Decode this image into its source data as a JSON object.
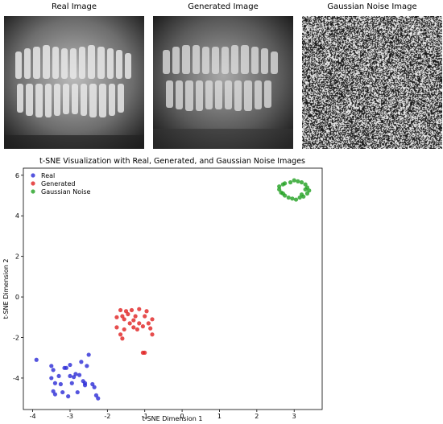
{
  "panels": [
    {
      "title": "Real Image",
      "icon": "panoramic-xray-icon"
    },
    {
      "title": "Generated Image",
      "icon": "panoramic-xray-icon"
    },
    {
      "title": "Gaussian Noise Image",
      "icon": "noise-texture-icon"
    }
  ],
  "chart_data": {
    "type": "scatter",
    "title": "t-SNE Visualization with Real, Generated, and Gaussian Noise Images",
    "xlabel": "t-SNE Dimension 1",
    "ylabel": "t-SNE Dimension 2",
    "xlim": [
      -4.25,
      3.75
    ],
    "ylim": [
      -5.55,
      6.35
    ],
    "xticks": [
      -4,
      -3,
      -2,
      -1,
      0,
      1,
      2,
      3
    ],
    "yticks": [
      -4,
      -2,
      0,
      2,
      4,
      6
    ],
    "legend_position": "top-left",
    "grid": false,
    "series": [
      {
        "name": "Real",
        "color": "#2a2ad6",
        "points": [
          [
            -3.9,
            -3.1
          ],
          [
            -3.5,
            -3.4
          ],
          [
            -3.45,
            -3.6
          ],
          [
            -3.15,
            -3.5
          ],
          [
            -3.1,
            -3.5
          ],
          [
            -3.0,
            -3.35
          ],
          [
            -2.7,
            -3.2
          ],
          [
            -2.55,
            -3.4
          ],
          [
            -2.5,
            -2.85
          ],
          [
            -3.5,
            -4.0
          ],
          [
            -3.3,
            -3.9
          ],
          [
            -3.0,
            -3.9
          ],
          [
            -2.9,
            -3.95
          ],
          [
            -2.85,
            -3.8
          ],
          [
            -2.75,
            -3.85
          ],
          [
            -2.65,
            -4.15
          ],
          [
            -3.4,
            -4.25
          ],
          [
            -3.25,
            -4.3
          ],
          [
            -2.95,
            -4.25
          ],
          [
            -2.6,
            -4.25
          ],
          [
            -2.6,
            -4.35
          ],
          [
            -2.4,
            -4.3
          ],
          [
            -2.35,
            -4.45
          ],
          [
            -3.45,
            -4.65
          ],
          [
            -3.4,
            -4.8
          ],
          [
            -3.2,
            -4.7
          ],
          [
            -3.05,
            -4.9
          ],
          [
            -2.8,
            -4.7
          ],
          [
            -2.3,
            -4.85
          ],
          [
            -2.25,
            -5.0
          ]
        ]
      },
      {
        "name": "Generated",
        "color": "#e02020",
        "points": [
          [
            -1.65,
            -0.65
          ],
          [
            -1.5,
            -0.7
          ],
          [
            -1.35,
            -0.65
          ],
          [
            -1.15,
            -0.6
          ],
          [
            -0.95,
            -0.7
          ],
          [
            -1.6,
            -0.95
          ],
          [
            -1.45,
            -0.85
          ],
          [
            -1.55,
            -1.1
          ],
          [
            -1.25,
            -0.95
          ],
          [
            -1.0,
            -0.95
          ],
          [
            -1.3,
            -1.15
          ],
          [
            -0.8,
            -1.1
          ],
          [
            -1.75,
            -1.0
          ],
          [
            -1.4,
            -1.3
          ],
          [
            -1.15,
            -1.3
          ],
          [
            -1.05,
            -1.45
          ],
          [
            -0.9,
            -1.3
          ],
          [
            -1.75,
            -1.5
          ],
          [
            -1.55,
            -1.6
          ],
          [
            -1.3,
            -1.5
          ],
          [
            -1.2,
            -1.6
          ],
          [
            -0.85,
            -1.55
          ],
          [
            -1.65,
            -1.85
          ],
          [
            -0.8,
            -1.85
          ],
          [
            -1.6,
            -2.05
          ],
          [
            -1.05,
            -2.75
          ],
          [
            -1.0,
            -2.75
          ]
        ]
      },
      {
        "name": "Gaussian Noise",
        "color": "#20a020",
        "points": [
          [
            2.75,
            5.6
          ],
          [
            2.9,
            5.65
          ],
          [
            3.0,
            5.75
          ],
          [
            3.1,
            5.7
          ],
          [
            3.2,
            5.65
          ],
          [
            3.3,
            5.55
          ],
          [
            3.35,
            5.4
          ],
          [
            3.4,
            5.25
          ],
          [
            3.35,
            5.1
          ],
          [
            3.25,
            4.95
          ],
          [
            3.15,
            4.9
          ],
          [
            3.05,
            4.8
          ],
          [
            2.95,
            4.85
          ],
          [
            2.85,
            4.9
          ],
          [
            2.75,
            5.0
          ],
          [
            2.65,
            5.15
          ],
          [
            2.6,
            5.3
          ],
          [
            2.6,
            5.45
          ],
          [
            2.7,
            5.55
          ],
          [
            3.3,
            5.3
          ],
          [
            2.7,
            5.1
          ],
          [
            3.2,
            5.05
          ]
        ]
      }
    ]
  }
}
